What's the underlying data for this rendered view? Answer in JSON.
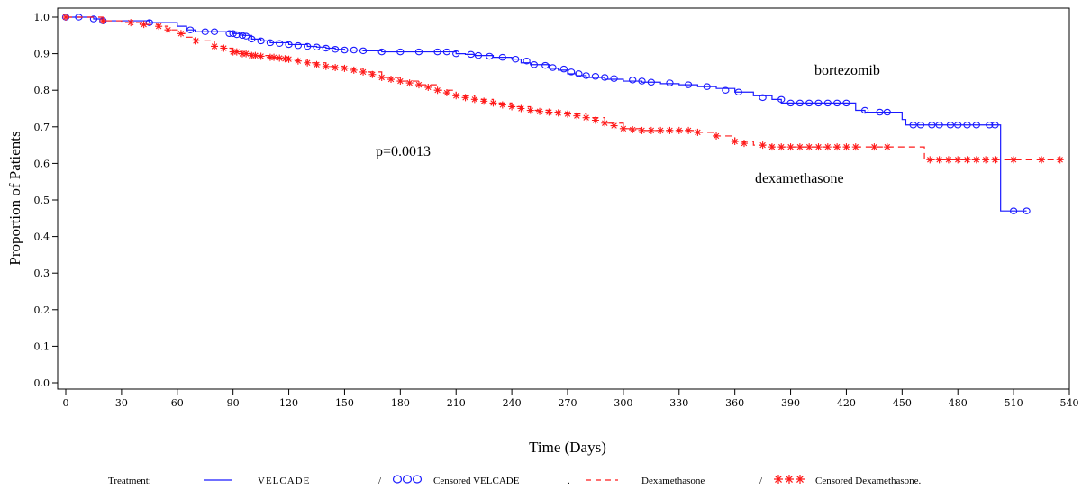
{
  "chart_data": {
    "type": "line",
    "subtype": "kaplan-meier-survival",
    "xlabel": "Time (Days)",
    "ylabel": "Proportion of Patients",
    "xlim": [
      0,
      540
    ],
    "ylim": [
      0,
      1.0
    ],
    "xticks": [
      0,
      30,
      60,
      90,
      120,
      150,
      180,
      210,
      240,
      270,
      300,
      330,
      360,
      390,
      420,
      450,
      480,
      510,
      540
    ],
    "yticks": [
      0.0,
      0.1,
      0.2,
      0.3,
      0.4,
      0.5,
      0.6,
      0.7,
      0.8,
      0.9,
      1.0
    ],
    "grid": false,
    "annotations": [
      {
        "text": "bortezomib",
        "x": 420,
        "y": 0.845
      },
      {
        "text": "dexamethasone",
        "x": 400,
        "y": 0.55
      },
      {
        "text": "p=0.0013",
        "x": 168,
        "y": 0.605
      }
    ],
    "legend": {
      "position": "bottom",
      "title": "Treatment:",
      "entries": [
        {
          "label": "VELCADE",
          "kind": "line",
          "series": 0
        },
        {
          "label": "Censored VELCADE",
          "kind": "marker",
          "series": 0
        },
        {
          "label": "Dexamethasone",
          "kind": "line",
          "series": 1
        },
        {
          "label": "Censored Dexamethasone.",
          "kind": "marker",
          "series": 1
        }
      ],
      "separators": [
        "/",
        ".",
        "/"
      ]
    },
    "series": [
      {
        "name": "VELCADE",
        "color": "#1a1aff",
        "line_style": "solid",
        "marker": "circle",
        "x": [
          0,
          5,
          10,
          15,
          20,
          30,
          45,
          60,
          65,
          70,
          80,
          90,
          95,
          100,
          105,
          110,
          120,
          130,
          135,
          140,
          145,
          150,
          160,
          170,
          200,
          210,
          215,
          220,
          230,
          240,
          245,
          250,
          260,
          265,
          270,
          275,
          280,
          290,
          300,
          310,
          320,
          330,
          340,
          350,
          360,
          370,
          380,
          385,
          400,
          410,
          420,
          425,
          430,
          440,
          450,
          452,
          460,
          470,
          480,
          490,
          500,
          503,
          510,
          517
        ],
        "y": [
          1.0,
          1.0,
          1.0,
          0.995,
          0.99,
          0.99,
          0.985,
          0.975,
          0.965,
          0.96,
          0.96,
          0.955,
          0.95,
          0.94,
          0.935,
          0.93,
          0.925,
          0.92,
          0.918,
          0.915,
          0.912,
          0.91,
          0.908,
          0.905,
          0.905,
          0.9,
          0.898,
          0.895,
          0.89,
          0.885,
          0.875,
          0.87,
          0.86,
          0.855,
          0.845,
          0.84,
          0.835,
          0.83,
          0.825,
          0.822,
          0.818,
          0.815,
          0.81,
          0.805,
          0.795,
          0.785,
          0.775,
          0.765,
          0.765,
          0.765,
          0.765,
          0.745,
          0.74,
          0.74,
          0.72,
          0.705,
          0.705,
          0.705,
          0.705,
          0.705,
          0.705,
          0.47,
          0.47,
          0.47
        ],
        "censored_x": [
          0,
          7,
          15,
          20,
          45,
          67,
          75,
          80,
          88,
          90,
          92,
          95,
          97,
          100,
          105,
          110,
          115,
          120,
          125,
          130,
          135,
          140,
          145,
          150,
          155,
          160,
          170,
          180,
          190,
          200,
          205,
          210,
          218,
          222,
          228,
          235,
          242,
          248,
          252,
          258,
          262,
          268,
          272,
          276,
          280,
          285,
          290,
          295,
          305,
          310,
          315,
          325,
          335,
          345,
          355,
          362,
          375,
          385,
          390,
          395,
          400,
          405,
          410,
          415,
          420,
          430,
          438,
          442,
          456,
          460,
          466,
          470,
          476,
          480,
          485,
          490,
          497,
          500,
          510,
          517
        ],
        "censored_y": [
          1.0,
          1.0,
          0.995,
          0.99,
          0.985,
          0.965,
          0.96,
          0.96,
          0.955,
          0.955,
          0.952,
          0.95,
          0.948,
          0.94,
          0.935,
          0.93,
          0.928,
          0.925,
          0.922,
          0.92,
          0.918,
          0.915,
          0.912,
          0.91,
          0.91,
          0.908,
          0.905,
          0.905,
          0.905,
          0.905,
          0.905,
          0.9,
          0.898,
          0.895,
          0.893,
          0.89,
          0.885,
          0.88,
          0.87,
          0.868,
          0.862,
          0.858,
          0.85,
          0.845,
          0.84,
          0.838,
          0.835,
          0.832,
          0.828,
          0.825,
          0.822,
          0.82,
          0.815,
          0.81,
          0.8,
          0.795,
          0.78,
          0.775,
          0.765,
          0.765,
          0.765,
          0.765,
          0.765,
          0.765,
          0.765,
          0.745,
          0.74,
          0.74,
          0.705,
          0.705,
          0.705,
          0.705,
          0.705,
          0.705,
          0.705,
          0.705,
          0.705,
          0.705,
          0.47,
          0.47
        ]
      },
      {
        "name": "Dexamethasone",
        "color": "#ff1a1a",
        "line_style": "dashed",
        "marker": "star",
        "x": [
          0,
          10,
          20,
          30,
          40,
          50,
          55,
          60,
          65,
          70,
          80,
          85,
          90,
          95,
          100,
          110,
          120,
          130,
          140,
          150,
          160,
          170,
          180,
          190,
          200,
          210,
          220,
          230,
          240,
          250,
          260,
          270,
          280,
          290,
          300,
          310,
          320,
          330,
          340,
          350,
          360,
          370,
          380,
          390,
          400,
          410,
          420,
          430,
          440,
          450,
          462,
          470,
          480,
          490,
          500,
          510,
          520,
          535
        ],
        "y": [
          1.0,
          1.0,
          0.99,
          0.985,
          0.98,
          0.975,
          0.965,
          0.955,
          0.945,
          0.935,
          0.92,
          0.915,
          0.905,
          0.9,
          0.895,
          0.89,
          0.885,
          0.875,
          0.865,
          0.86,
          0.85,
          0.835,
          0.825,
          0.815,
          0.8,
          0.785,
          0.775,
          0.765,
          0.755,
          0.745,
          0.74,
          0.735,
          0.725,
          0.71,
          0.695,
          0.69,
          0.69,
          0.69,
          0.685,
          0.675,
          0.66,
          0.65,
          0.645,
          0.645,
          0.645,
          0.645,
          0.645,
          0.645,
          0.645,
          0.645,
          0.61,
          0.61,
          0.61,
          0.61,
          0.61,
          0.61,
          0.61,
          0.61
        ],
        "censored_x": [
          0,
          20,
          35,
          42,
          50,
          55,
          62,
          70,
          80,
          85,
          90,
          92,
          95,
          97,
          100,
          102,
          105,
          110,
          112,
          115,
          118,
          120,
          125,
          130,
          135,
          140,
          145,
          150,
          155,
          160,
          165,
          170,
          175,
          180,
          185,
          190,
          195,
          200,
          205,
          210,
          215,
          220,
          225,
          230,
          235,
          240,
          245,
          250,
          255,
          260,
          265,
          270,
          275,
          280,
          285,
          290,
          295,
          300,
          305,
          310,
          315,
          320,
          325,
          330,
          335,
          340,
          350,
          360,
          365,
          375,
          380,
          385,
          390,
          395,
          400,
          405,
          410,
          415,
          420,
          425,
          435,
          442,
          465,
          470,
          475,
          480,
          485,
          490,
          495,
          500,
          510,
          525,
          535
        ],
        "censored_y": [
          1.0,
          0.99,
          0.985,
          0.98,
          0.975,
          0.965,
          0.955,
          0.935,
          0.92,
          0.915,
          0.905,
          0.905,
          0.9,
          0.9,
          0.895,
          0.895,
          0.893,
          0.89,
          0.89,
          0.888,
          0.886,
          0.885,
          0.88,
          0.875,
          0.87,
          0.865,
          0.862,
          0.86,
          0.855,
          0.85,
          0.843,
          0.835,
          0.83,
          0.825,
          0.82,
          0.815,
          0.808,
          0.8,
          0.793,
          0.785,
          0.78,
          0.775,
          0.77,
          0.765,
          0.76,
          0.755,
          0.75,
          0.745,
          0.742,
          0.74,
          0.738,
          0.735,
          0.73,
          0.725,
          0.718,
          0.71,
          0.703,
          0.695,
          0.692,
          0.69,
          0.69,
          0.69,
          0.69,
          0.69,
          0.69,
          0.685,
          0.675,
          0.66,
          0.655,
          0.65,
          0.645,
          0.645,
          0.645,
          0.645,
          0.645,
          0.645,
          0.645,
          0.645,
          0.645,
          0.645,
          0.645,
          0.645,
          0.61,
          0.61,
          0.61,
          0.61,
          0.61,
          0.61,
          0.61,
          0.61,
          0.61,
          0.61,
          0.61
        ]
      }
    ]
  }
}
